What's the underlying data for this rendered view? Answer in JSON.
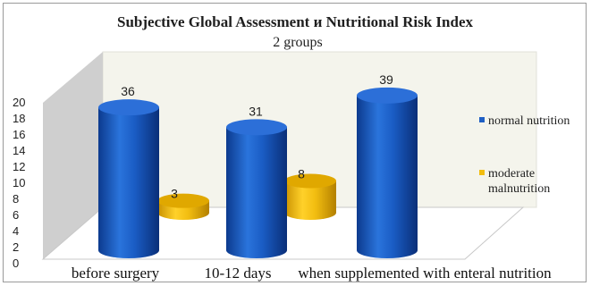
{
  "chart_data": {
    "type": "bar",
    "title": "Subjective Global Assessment и Nutritional Risk Index",
    "subtitle": "2 groups",
    "categories": [
      "before surgery",
      "10-12 days",
      "when supplemented with enteral nutrition"
    ],
    "series": [
      {
        "name": "normal nutrition",
        "values": [
          36,
          31,
          39
        ],
        "color": "#1f5fc4"
      },
      {
        "name": "moderate malnutrition",
        "values": [
          3,
          8,
          null
        ],
        "color": "#f2bd10"
      }
    ],
    "yticks": [
      "0",
      "2",
      "4",
      "6",
      "8",
      "10",
      "12",
      "14",
      "16",
      "18",
      "20"
    ],
    "ylim": [
      0,
      20
    ],
    "legend_position": "right",
    "style": "3d-cylinder"
  }
}
